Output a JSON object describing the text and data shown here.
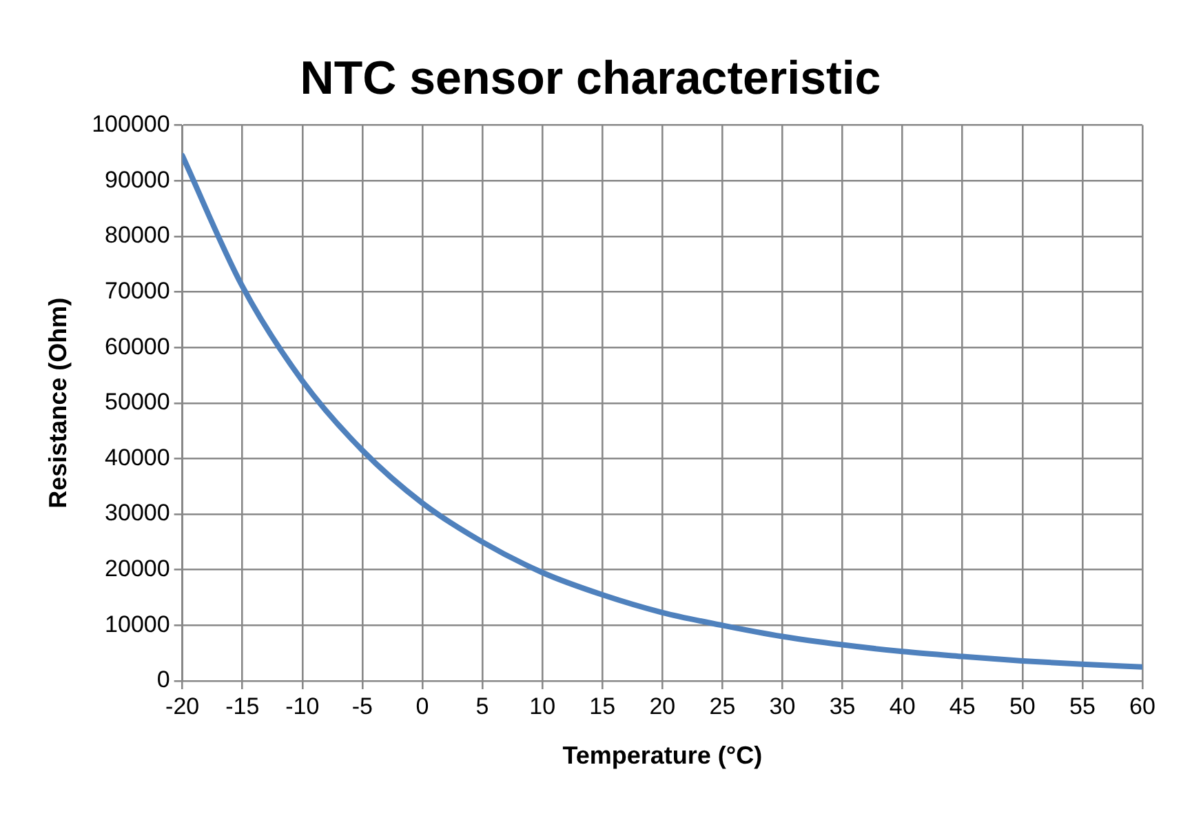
{
  "chart_data": {
    "type": "line",
    "title": "NTC sensor characteristic",
    "xlabel": "Temperature (°C)",
    "ylabel": "Resistance (Ohm)",
    "x": [
      -20,
      -15,
      -10,
      -5,
      0,
      5,
      10,
      15,
      20,
      25,
      30,
      35,
      40,
      45,
      50,
      55,
      60
    ],
    "series": [
      {
        "color": "#4f81bd",
        "values": [
          94500,
          71000,
          54000,
          41500,
          32000,
          25000,
          19500,
          15500,
          12300,
          10000,
          8000,
          6500,
          5300,
          4400,
          3600,
          3000,
          2500
        ]
      }
    ],
    "xlim": [
      -20,
      60
    ],
    "xticks": [
      -20,
      -15,
      -10,
      -5,
      0,
      5,
      10,
      15,
      20,
      25,
      30,
      35,
      40,
      45,
      50,
      55,
      60
    ],
    "ylim": [
      0,
      100000
    ],
    "yticks": [
      0,
      10000,
      20000,
      30000,
      40000,
      50000,
      60000,
      70000,
      80000,
      90000,
      100000
    ],
    "grid": true,
    "legend": false,
    "marker": "none",
    "line_style": "solid"
  }
}
